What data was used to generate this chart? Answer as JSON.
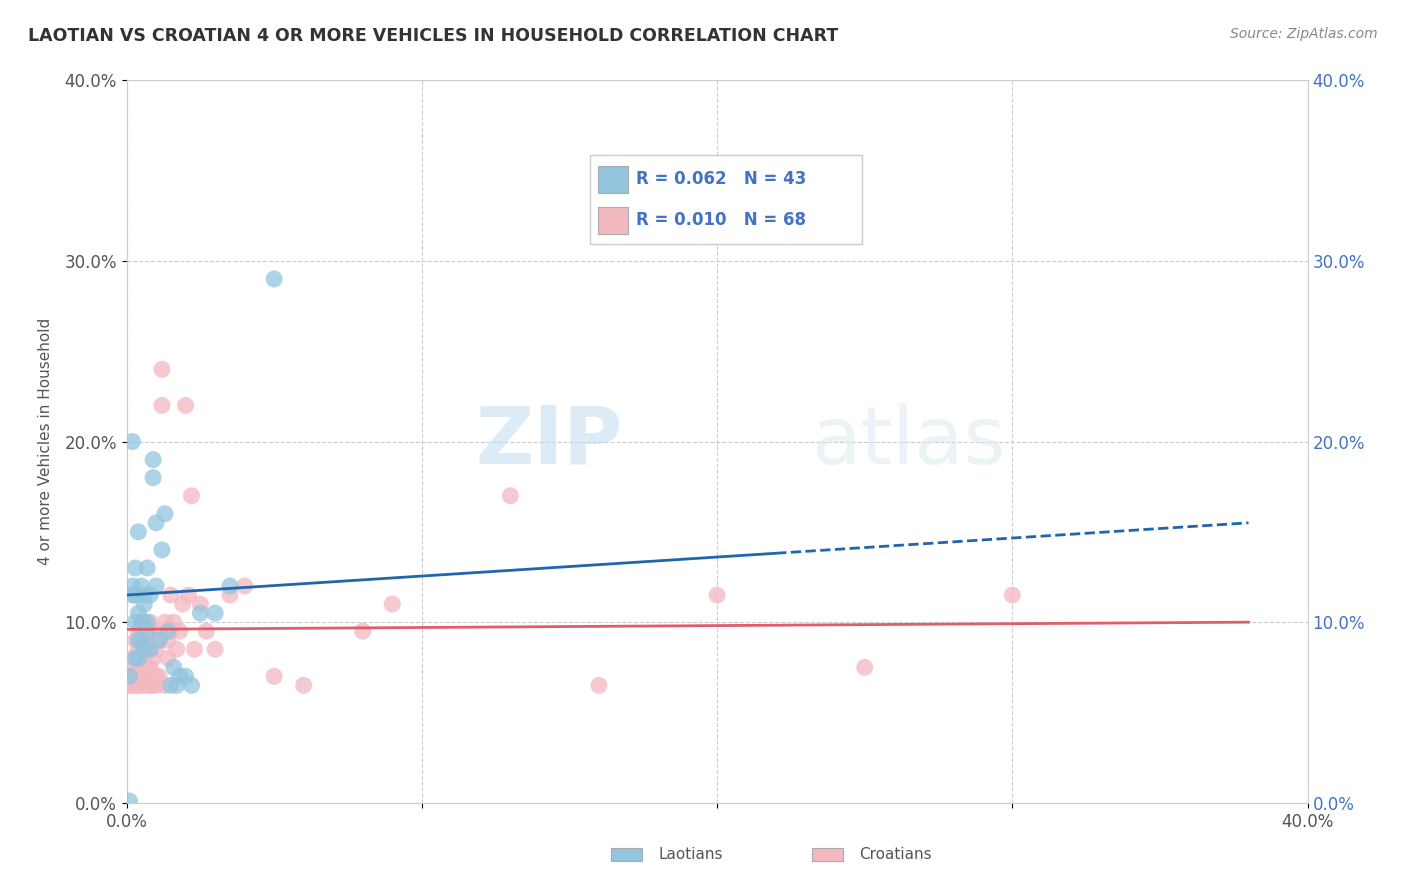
{
  "title": "LAOTIAN VS CROATIAN 4 OR MORE VEHICLES IN HOUSEHOLD CORRELATION CHART",
  "source": "Source: ZipAtlas.com",
  "ylabel": "4 or more Vehicles in Household",
  "xlim": [
    0.0,
    0.4
  ],
  "ylim": [
    0.0,
    0.4
  ],
  "xticks": [
    0.0,
    0.1,
    0.2,
    0.3,
    0.4
  ],
  "yticks": [
    0.0,
    0.1,
    0.2,
    0.3,
    0.4
  ],
  "xticklabels": [
    "0.0%",
    "",
    "",
    "",
    "40.0%"
  ],
  "yticklabels": [
    "0.0%",
    "10.0%",
    "20.0%",
    "30.0%",
    "40.0%"
  ],
  "right_yticklabels": [
    "0.0%",
    "10.0%",
    "20.0%",
    "30.0%",
    "40.0%"
  ],
  "legend_labels": [
    "Laotians",
    "Croatians"
  ],
  "R_laotian": 0.062,
  "N_laotian": 43,
  "R_croatian": 0.01,
  "N_croatian": 68,
  "laotian_color": "#92c5de",
  "croatian_color": "#f4b8c1",
  "laotian_line_color": "#2166ac",
  "croatian_line_color": "#e05c6e",
  "watermark_zip": "ZIP",
  "watermark_atlas": "atlas",
  "laotian_x": [
    0.001,
    0.001,
    0.002,
    0.002,
    0.002,
    0.003,
    0.003,
    0.003,
    0.003,
    0.004,
    0.004,
    0.004,
    0.004,
    0.005,
    0.005,
    0.005,
    0.005,
    0.006,
    0.006,
    0.006,
    0.007,
    0.007,
    0.007,
    0.008,
    0.008,
    0.009,
    0.009,
    0.01,
    0.01,
    0.011,
    0.012,
    0.013,
    0.014,
    0.015,
    0.016,
    0.017,
    0.018,
    0.02,
    0.022,
    0.025,
    0.03,
    0.035,
    0.05
  ],
  "laotian_y": [
    0.001,
    0.07,
    0.115,
    0.12,
    0.2,
    0.08,
    0.13,
    0.1,
    0.115,
    0.09,
    0.105,
    0.15,
    0.08,
    0.12,
    0.09,
    0.1,
    0.1,
    0.115,
    0.085,
    0.11,
    0.1,
    0.13,
    0.095,
    0.115,
    0.085,
    0.19,
    0.18,
    0.155,
    0.12,
    0.09,
    0.14,
    0.16,
    0.095,
    0.065,
    0.075,
    0.065,
    0.07,
    0.07,
    0.065,
    0.105,
    0.105,
    0.12,
    0.29
  ],
  "croatian_x": [
    0.001,
    0.001,
    0.001,
    0.002,
    0.002,
    0.002,
    0.003,
    0.003,
    0.003,
    0.003,
    0.004,
    0.004,
    0.004,
    0.004,
    0.005,
    0.005,
    0.005,
    0.005,
    0.006,
    0.006,
    0.006,
    0.006,
    0.007,
    0.007,
    0.007,
    0.007,
    0.008,
    0.008,
    0.008,
    0.008,
    0.009,
    0.009,
    0.009,
    0.01,
    0.01,
    0.01,
    0.011,
    0.011,
    0.012,
    0.012,
    0.013,
    0.013,
    0.014,
    0.014,
    0.015,
    0.015,
    0.016,
    0.017,
    0.018,
    0.019,
    0.02,
    0.021,
    0.022,
    0.023,
    0.025,
    0.027,
    0.03,
    0.035,
    0.04,
    0.05,
    0.06,
    0.08,
    0.09,
    0.13,
    0.16,
    0.2,
    0.25,
    0.3
  ],
  "croatian_y": [
    0.065,
    0.07,
    0.075,
    0.065,
    0.07,
    0.08,
    0.065,
    0.08,
    0.09,
    0.07,
    0.065,
    0.075,
    0.085,
    0.095,
    0.065,
    0.07,
    0.09,
    0.095,
    0.07,
    0.08,
    0.095,
    0.1,
    0.065,
    0.075,
    0.085,
    0.09,
    0.065,
    0.075,
    0.095,
    0.1,
    0.065,
    0.08,
    0.095,
    0.065,
    0.07,
    0.085,
    0.07,
    0.09,
    0.22,
    0.24,
    0.1,
    0.065,
    0.08,
    0.09,
    0.095,
    0.115,
    0.1,
    0.085,
    0.095,
    0.11,
    0.22,
    0.115,
    0.17,
    0.085,
    0.11,
    0.095,
    0.085,
    0.115,
    0.12,
    0.07,
    0.065,
    0.095,
    0.11,
    0.17,
    0.065,
    0.115,
    0.075,
    0.115
  ],
  "lao_line_x_solid_end": 0.22,
  "lao_line_x_dash_end": 0.38,
  "cro_line_x_end": 0.38
}
